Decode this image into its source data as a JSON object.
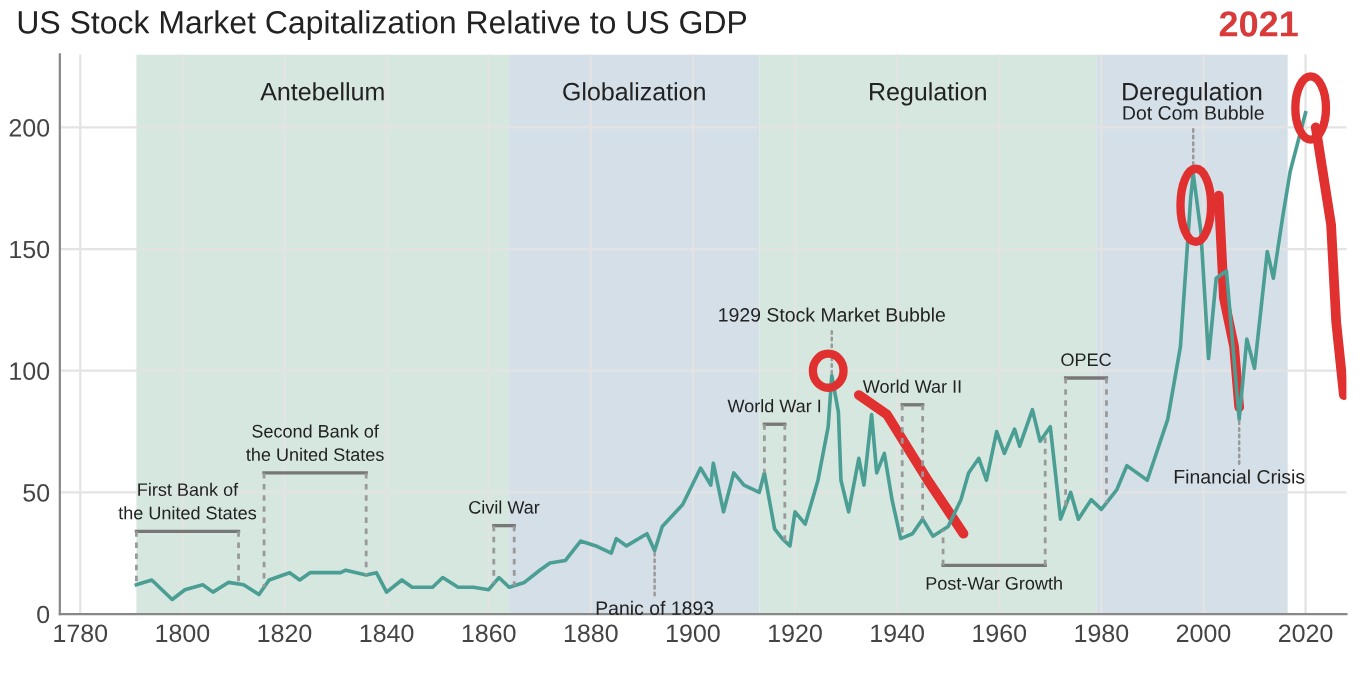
{
  "chart_data": {
    "type": "line",
    "title": "US Stock Market Capitalization Relative to US GDP",
    "x": [
      1791,
      1794,
      1798,
      1800.5,
      1804,
      1806,
      1809,
      1812,
      1815,
      1817,
      1821,
      1823,
      1825,
      1831,
      1832,
      1836,
      1838,
      1840,
      1843,
      1845,
      1849,
      1851,
      1854,
      1857,
      1860,
      1862,
      1864,
      1867,
      1870,
      1872,
      1875,
      1878,
      1881,
      1884,
      1885,
      1887,
      1891,
      1892.5,
      1894,
      1898,
      1901.5,
      1903.5,
      1904,
      1906,
      1908,
      1910,
      1913,
      1914,
      1916,
      1917.5,
      1919,
      1920,
      1922,
      1924.5,
      1926.5,
      1927.2,
      1928.5,
      1929,
      1930.5,
      1932.5,
      1933.5,
      1935,
      1936,
      1937.5,
      1939,
      1940.7,
      1943,
      1945,
      1947,
      1950,
      1952.5,
      1954,
      1956,
      1957.5,
      1959.5,
      1961,
      1963,
      1964,
      1966.5,
      1968,
      1970,
      1972,
      1974,
      1975.5,
      1978,
      1980,
      1983,
      1985,
      1989,
      1993,
      1995.5,
      1997.5,
      1998,
      1999.5,
      2001,
      2002.5,
      2004.5,
      2007,
      2008.5,
      2010,
      2012.5,
      2013.7,
      2015.5,
      2017,
      2019,
      2020
    ],
    "series": [
      {
        "color": "#4a9e94",
        "values": [
          12,
          14,
          6,
          10,
          12,
          9,
          13,
          12,
          8,
          14,
          17,
          14,
          17,
          17,
          18,
          16,
          17,
          9,
          14,
          11,
          11,
          15,
          11,
          11,
          10,
          15,
          11,
          13,
          18,
          21,
          22,
          30,
          28,
          25,
          31,
          28,
          33,
          26,
          36,
          45,
          60,
          53,
          62,
          42,
          58,
          53,
          50,
          58,
          35,
          31,
          28,
          42,
          37,
          55,
          77,
          98,
          83,
          55,
          42,
          64,
          53,
          82,
          58,
          66,
          47,
          31,
          33,
          39,
          32,
          36,
          47,
          58,
          64,
          55,
          75,
          66,
          76,
          69,
          84,
          71,
          77,
          39,
          50,
          39,
          47,
          43,
          51,
          61,
          55,
          80,
          110,
          171,
          181,
          157,
          105,
          138,
          141,
          80,
          113,
          101,
          149,
          138,
          163,
          182,
          198,
          206
        ]
      }
    ],
    "xlim": [
      1776,
      2028
    ],
    "ylim": [
      0,
      230
    ],
    "xticks": [
      1780,
      1800,
      1820,
      1840,
      1860,
      1880,
      1900,
      1920,
      1940,
      1960,
      1980,
      2000,
      2020
    ],
    "yticks": [
      0,
      50,
      100,
      150,
      200
    ],
    "grid": true,
    "legend": false,
    "bands": [
      {
        "axis": "x",
        "from": 1791,
        "to": 1864,
        "label": "Antebellum",
        "color": "#d6e7df"
      },
      {
        "axis": "x",
        "from": 1864,
        "to": 1913,
        "label": "Globalization",
        "color": "#d5dfe8"
      },
      {
        "axis": "x",
        "from": 1913,
        "to": 1979,
        "label": "Regulation",
        "color": "#d6e7df"
      },
      {
        "axis": "x",
        "from": 1979,
        "to": 2016.5,
        "label": "Deregulation",
        "color": "#d5dfe8"
      }
    ],
    "ref_lines": [
      {
        "axis": "x",
        "value": 1791,
        "label": "First Bank of\nthe United States",
        "color": "#999999",
        "line_style": "dashed"
      },
      {
        "axis": "x",
        "value": 1811,
        "color": "#999999",
        "line_style": "dashed"
      },
      {
        "axis": "x",
        "value": 1816,
        "label": "Second Bank of\nthe United States",
        "color": "#999999",
        "line_style": "dashed"
      },
      {
        "axis": "x",
        "value": 1836,
        "color": "#999999",
        "line_style": "dashed"
      },
      {
        "axis": "x",
        "value": 1861,
        "label": "Civil War",
        "color": "#999999",
        "line_style": "dashed"
      },
      {
        "axis": "x",
        "value": 1865,
        "color": "#999999",
        "line_style": "dashed"
      },
      {
        "axis": "x",
        "value": 1914,
        "label": "World War I",
        "color": "#999999",
        "line_style": "dashed"
      },
      {
        "axis": "x",
        "value": 1918,
        "color": "#999999",
        "line_style": "dashed"
      },
      {
        "axis": "x",
        "value": 1941,
        "label": "World War II",
        "color": "#999999",
        "line_style": "dashed"
      },
      {
        "axis": "x",
        "value": 1945,
        "color": "#999999",
        "line_style": "dashed"
      },
      {
        "axis": "x",
        "value": 1949,
        "label": "Post-War Growth",
        "color": "#999999",
        "line_style": "dashed"
      },
      {
        "axis": "x",
        "value": 1969,
        "color": "#999999",
        "line_style": "dashed"
      },
      {
        "axis": "x",
        "value": 1973,
        "label": "OPEC",
        "color": "#999999",
        "line_style": "dashed"
      },
      {
        "axis": "x",
        "value": 1981,
        "color": "#999999",
        "line_style": "dashed"
      }
    ],
    "annotations": [
      {
        "text": "Panic of 1893",
        "x": 1892.5,
        "y": 26
      },
      {
        "text": "1929 Stock Market Bubble",
        "x": 1927.2,
        "y": 98
      },
      {
        "text": "Dot Com Bubble",
        "x": 1998,
        "y": 181
      },
      {
        "text": "Financial Crisis",
        "x": 2007,
        "y": 80
      },
      "2021"
    ]
  }
}
